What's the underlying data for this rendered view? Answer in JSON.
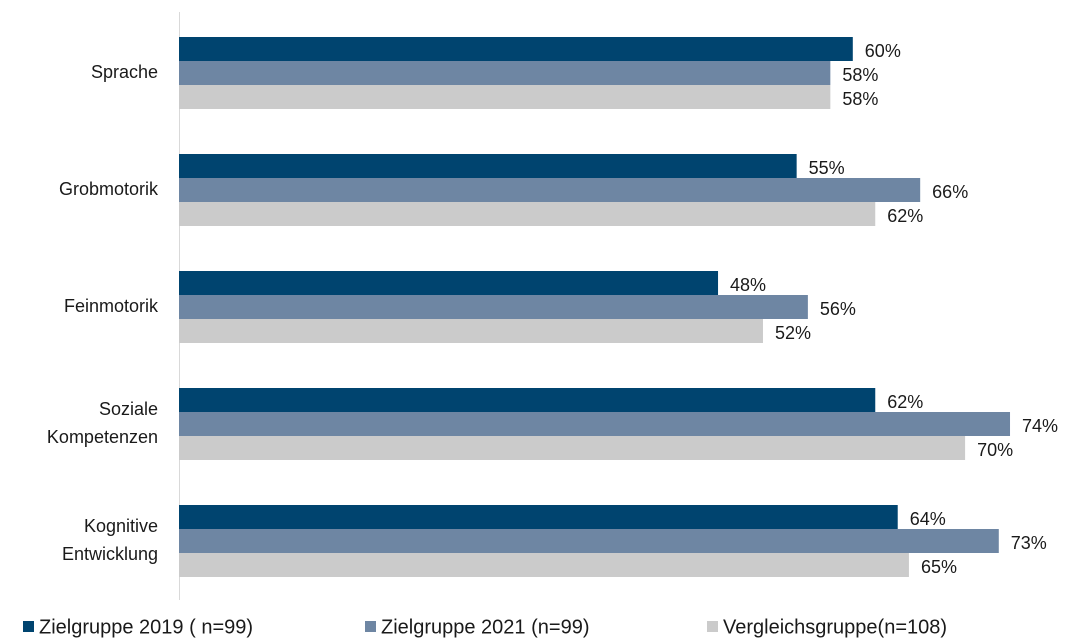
{
  "chart_data": {
    "type": "barh",
    "categories": [
      "Sprache",
      "Grobmotorik",
      "Feinmotorik",
      "Soziale Kompetenzen",
      "Kognitive Entwicklung"
    ],
    "series": [
      {
        "name": "Zielgruppe 2019 ( n=99)",
        "color": "#00446f",
        "values": [
          60,
          55,
          48,
          62,
          64
        ],
        "value_labels": [
          "60%",
          "55%",
          "48%",
          "62%",
          "64%"
        ]
      },
      {
        "name": "Zielgruppe 2021 (n=99)",
        "color": "#6e86a3",
        "values": [
          58,
          66,
          56,
          74,
          73
        ],
        "value_labels": [
          "58%",
          "66%",
          "56%",
          "74%",
          "73%"
        ]
      },
      {
        "name": "Vergleichsgruppe(n=108)",
        "color": "#cbcbcb",
        "values": [
          58,
          62,
          52,
          70,
          65
        ],
        "value_labels": [
          "58%",
          "62%",
          "52%",
          "70%",
          "65%"
        ]
      }
    ],
    "legend": "bottom"
  }
}
